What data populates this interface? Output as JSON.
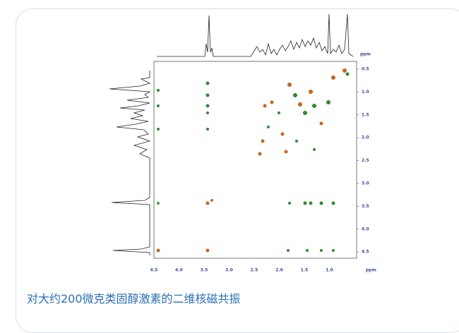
{
  "figure": {
    "x_ticks": [
      "4.5",
      "4.0",
      "3.5",
      "3.0",
      "2.5",
      "2.0",
      "1.5",
      "1.0"
    ],
    "x_unit": "ppm",
    "y_ticks": [
      "0.5",
      "1.0",
      "1.5",
      "2.0",
      "2.5",
      "3.0",
      "3.5",
      "4.0",
      "4.5"
    ],
    "y_unit": "ppm",
    "caption": "对大约200微克类固醇激素的二维核磁共振"
  }
}
